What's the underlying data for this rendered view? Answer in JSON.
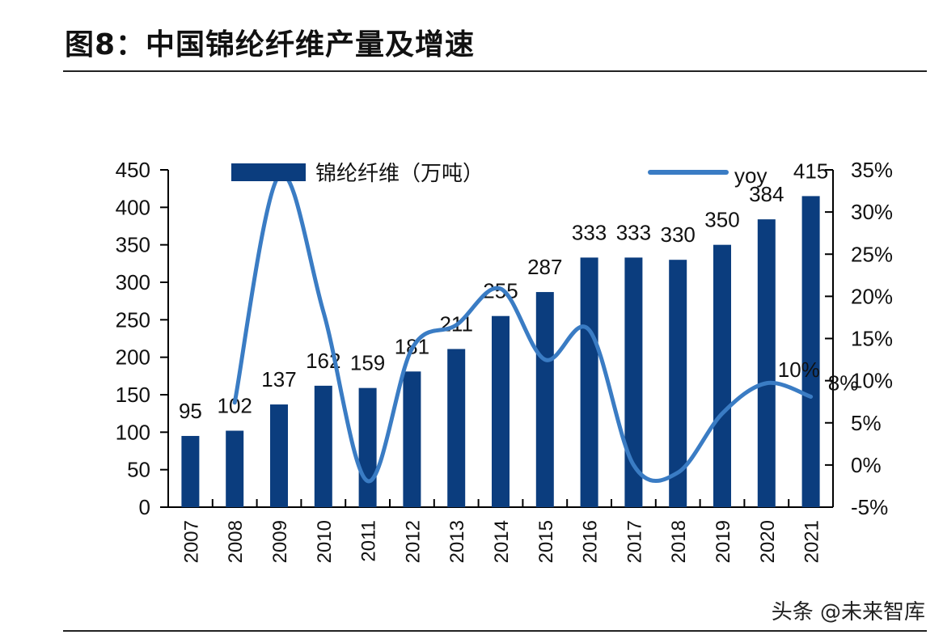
{
  "title": "图8：中国锦纶纤维产量及增速",
  "watermark": "头条 @未来智库",
  "colors": {
    "bar": "#0b3d7e",
    "line": "#3a7cc4",
    "axis": "#000000"
  },
  "chart_data": {
    "type": "bar+line",
    "categories": [
      "2007",
      "2008",
      "2009",
      "2010",
      "2011",
      "2012",
      "2013",
      "2014",
      "2015",
      "2016",
      "2017",
      "2018",
      "2019",
      "2020",
      "2021"
    ],
    "series": [
      {
        "name": "锦纶纤维（万吨）",
        "type": "bar",
        "axis": "left",
        "values": [
          95,
          102,
          137,
          162,
          159,
          181,
          211,
          255,
          287,
          333,
          333,
          330,
          350,
          384,
          415
        ],
        "labels": [
          "95",
          "102",
          "137",
          "162",
          "159",
          "181",
          "211",
          "255",
          "287",
          "333",
          "333",
          "330",
          "350",
          "384",
          "415"
        ]
      },
      {
        "name": "yoy",
        "type": "line",
        "axis": "right",
        "smooth": true,
        "values": [
          null,
          7.4,
          34.3,
          18.2,
          -1.9,
          13.8,
          16.6,
          20.9,
          12.5,
          16.0,
          0.0,
          -0.9,
          6.1,
          9.7,
          8.1
        ]
      }
    ],
    "line_labels": [
      {
        "category": "2020",
        "text": "10%"
      },
      {
        "category": "2021",
        "text": "8%"
      }
    ],
    "left_axis": {
      "ylim": [
        0,
        450
      ],
      "ticks": [
        "0",
        "50",
        "100",
        "150",
        "200",
        "250",
        "300",
        "350",
        "400",
        "450"
      ]
    },
    "right_axis": {
      "ylim": [
        -5,
        35
      ],
      "ticks": [
        "-5%",
        "0%",
        "5%",
        "10%",
        "15%",
        "20%",
        "25%",
        "30%",
        "35%"
      ]
    },
    "legend": "top",
    "grid": false
  }
}
